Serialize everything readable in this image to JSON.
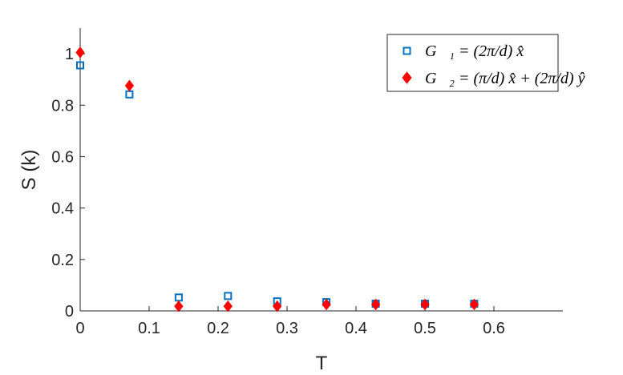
{
  "chart_data": {
    "type": "scatter",
    "xlabel": "T",
    "ylabel": "S (k)",
    "xlim": [
      0,
      0.7
    ],
    "ylim": [
      0,
      1.1
    ],
    "xticks": [
      0,
      0.1,
      0.2,
      0.3,
      0.4,
      0.5,
      0.6
    ],
    "xtick_labels": [
      "0",
      "0.1",
      "0.2",
      "0.3",
      "0.4",
      "0.5",
      "0.6"
    ],
    "yticks": [
      0,
      0.2,
      0.4,
      0.6,
      0.8,
      1
    ],
    "ytick_labels": [
      "0",
      "0.2",
      "0.4",
      "0.6",
      "0.8",
      "1"
    ],
    "grid": false,
    "legend_position": "top-right",
    "series": [
      {
        "name": "G⃗₁ = (2π/d) x̂",
        "marker": "square",
        "color": "#0072BD",
        "x": [
          0.0,
          0.0714,
          0.1429,
          0.2143,
          0.2857,
          0.3571,
          0.4286,
          0.5,
          0.5714
        ],
        "y": [
          0.955,
          0.842,
          0.052,
          0.058,
          0.037,
          0.034,
          0.028,
          0.028,
          0.028
        ]
      },
      {
        "name": "G⃗₂ = (π/d) x̂ + (2π/d) ŷ",
        "marker": "diamond",
        "color": "#FF0000",
        "x": [
          0.0,
          0.0714,
          0.1429,
          0.2143,
          0.2857,
          0.3571,
          0.4286,
          0.5,
          0.5714
        ],
        "y": [
          1.005,
          0.876,
          0.018,
          0.018,
          0.018,
          0.025,
          0.025,
          0.025,
          0.025
        ]
      }
    ]
  }
}
